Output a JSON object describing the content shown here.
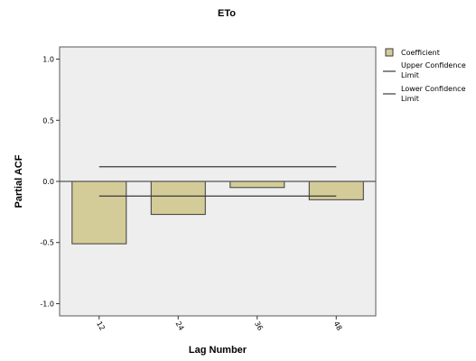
{
  "chart_data": {
    "type": "bar",
    "title": "ETo",
    "xlabel": "Lag Number",
    "ylabel": "Partial ACF",
    "categories": [
      "12",
      "24",
      "36",
      "48"
    ],
    "ylim": [
      -1.1,
      1.1
    ],
    "yticks": [
      "1.0",
      "0.5",
      "0.0",
      "-0.5",
      "-1.0"
    ],
    "ytick_values": [
      1.0,
      0.5,
      0.0,
      -0.5,
      -1.0
    ],
    "series": [
      {
        "name": "Coefficient",
        "values": [
          -0.51,
          -0.27,
          -0.05,
          -0.15
        ],
        "color": "#d4cc98"
      }
    ],
    "upper_confidence_limit": 0.12,
    "lower_confidence_limit": -0.12,
    "grid": false,
    "legend_position": "right",
    "colors": {
      "plot_background": "#eeeeee",
      "bar_fill": "#d4cc98",
      "bar_stroke": "#3a3a3a",
      "confidence_line": "#3a3a3a"
    }
  },
  "legend": {
    "coefficient": "Coefficient",
    "upper_line1": "Upper Confidence",
    "upper_line2": "Limit",
    "lower_line1": "Lower Confidence",
    "lower_line2": "Limit"
  }
}
